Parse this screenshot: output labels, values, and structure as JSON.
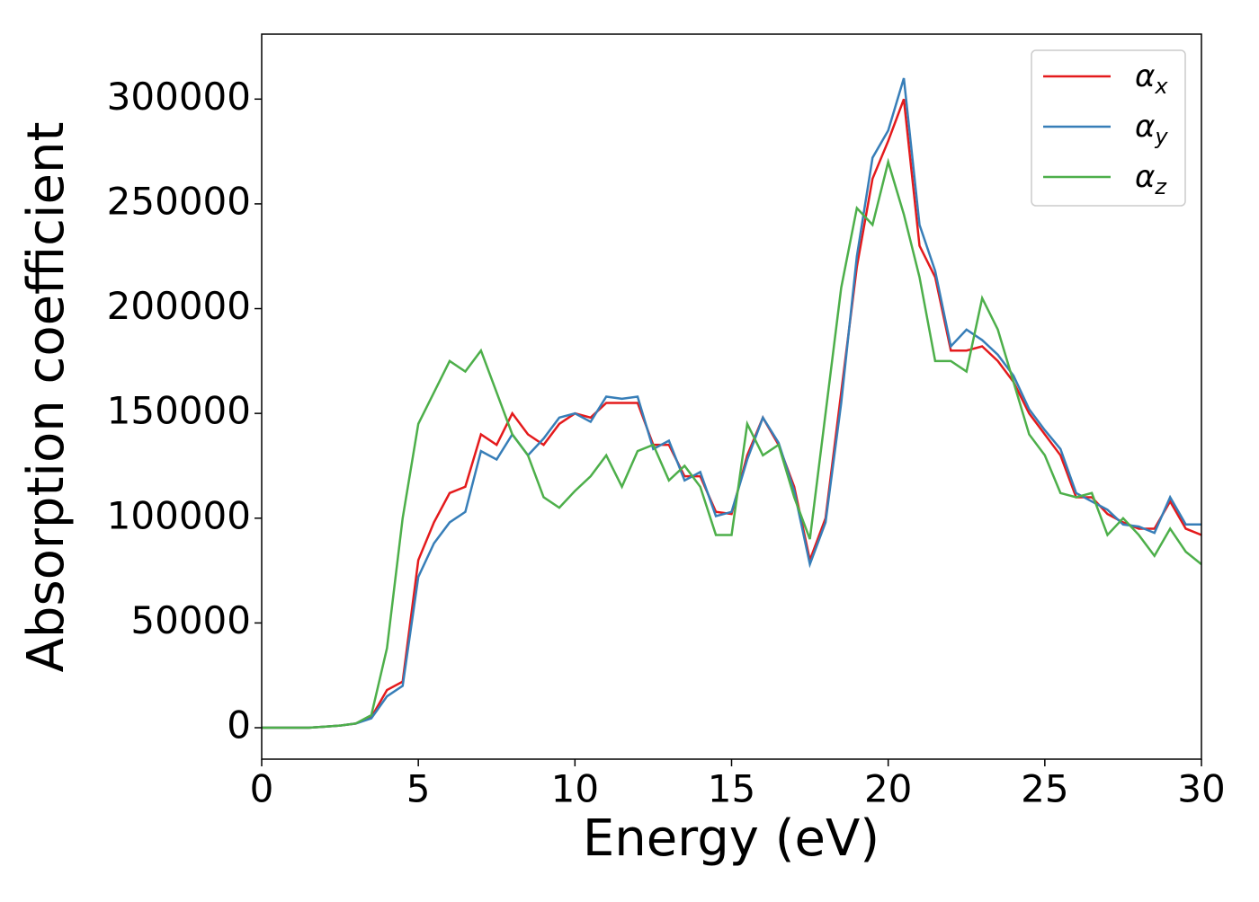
{
  "chart_data": {
    "type": "line",
    "x_label": "Energy (eV)",
    "y_label": "Absorption coefficient",
    "x": [
      0,
      0.5,
      1,
      1.5,
      2,
      2.5,
      3,
      3.5,
      4,
      4.5,
      5,
      5.5,
      6,
      6.5,
      7,
      7.5,
      8,
      8.5,
      9,
      9.5,
      10,
      10.5,
      11,
      11.5,
      12,
      12.5,
      13,
      13.5,
      14,
      14.5,
      15,
      15.5,
      16,
      16.5,
      17,
      17.5,
      18,
      18.5,
      19,
      19.5,
      20,
      20.5,
      21,
      21.5,
      22,
      22.5,
      23,
      23.5,
      24,
      24.5,
      25,
      25.5,
      26,
      26.5,
      27,
      27.5,
      28,
      28.5,
      29,
      29.5,
      30
    ],
    "series": [
      {
        "name": "αx",
        "color": "#e41a1c",
        "values": [
          0,
          0,
          0,
          0,
          500,
          1000,
          2000,
          5000,
          18000,
          22000,
          80000,
          98000,
          112000,
          115000,
          140000,
          135000,
          150000,
          140000,
          135000,
          145000,
          150000,
          148000,
          155000,
          155000,
          155000,
          135000,
          135000,
          120000,
          120000,
          103000,
          102000,
          130000,
          148000,
          135000,
          115000,
          80000,
          100000,
          160000,
          220000,
          262000,
          280000,
          300000,
          230000,
          215000,
          180000,
          180000,
          182000,
          175000,
          165000,
          150000,
          140000,
          130000,
          110000,
          110000,
          102000,
          98000,
          95000,
          95000,
          108000,
          95000,
          92000
        ]
      },
      {
        "name": "αy",
        "color": "#377eb8",
        "values": [
          0,
          0,
          0,
          0,
          500,
          1000,
          2000,
          4500,
          15000,
          20000,
          72000,
          88000,
          98000,
          103000,
          132000,
          128000,
          140000,
          130000,
          138000,
          148000,
          150000,
          146000,
          158000,
          157000,
          158000,
          133000,
          137000,
          118000,
          122000,
          101000,
          103000,
          128000,
          148000,
          136000,
          113000,
          78000,
          98000,
          155000,
          225000,
          272000,
          285000,
          310000,
          240000,
          218000,
          182000,
          190000,
          185000,
          178000,
          168000,
          152000,
          142000,
          133000,
          112000,
          108000,
          104000,
          97000,
          96000,
          93000,
          110000,
          97000,
          97000
        ]
      },
      {
        "name": "αz",
        "color": "#4daf4a",
        "values": [
          0,
          0,
          0,
          0,
          500,
          1000,
          2000,
          6000,
          38000,
          100000,
          145000,
          160000,
          175000,
          170000,
          180000,
          160000,
          140000,
          130000,
          110000,
          105000,
          113000,
          120000,
          130000,
          115000,
          132000,
          135000,
          118000,
          125000,
          115000,
          92000,
          92000,
          145000,
          130000,
          135000,
          110000,
          90000,
          150000,
          210000,
          248000,
          240000,
          270000,
          245000,
          215000,
          175000,
          175000,
          170000,
          205000,
          190000,
          165000,
          140000,
          130000,
          112000,
          110000,
          112000,
          92000,
          100000,
          92000,
          82000,
          95000,
          84000,
          78000
        ]
      }
    ],
    "xlim": [
      0,
      30
    ],
    "xticks": [
      0,
      5,
      10,
      15,
      20,
      25,
      30
    ],
    "ylim": [
      -15000,
      331000
    ],
    "yticks": [
      0,
      50000,
      100000,
      150000,
      200000,
      250000,
      300000
    ],
    "grid": false,
    "legend": "upper right"
  }
}
